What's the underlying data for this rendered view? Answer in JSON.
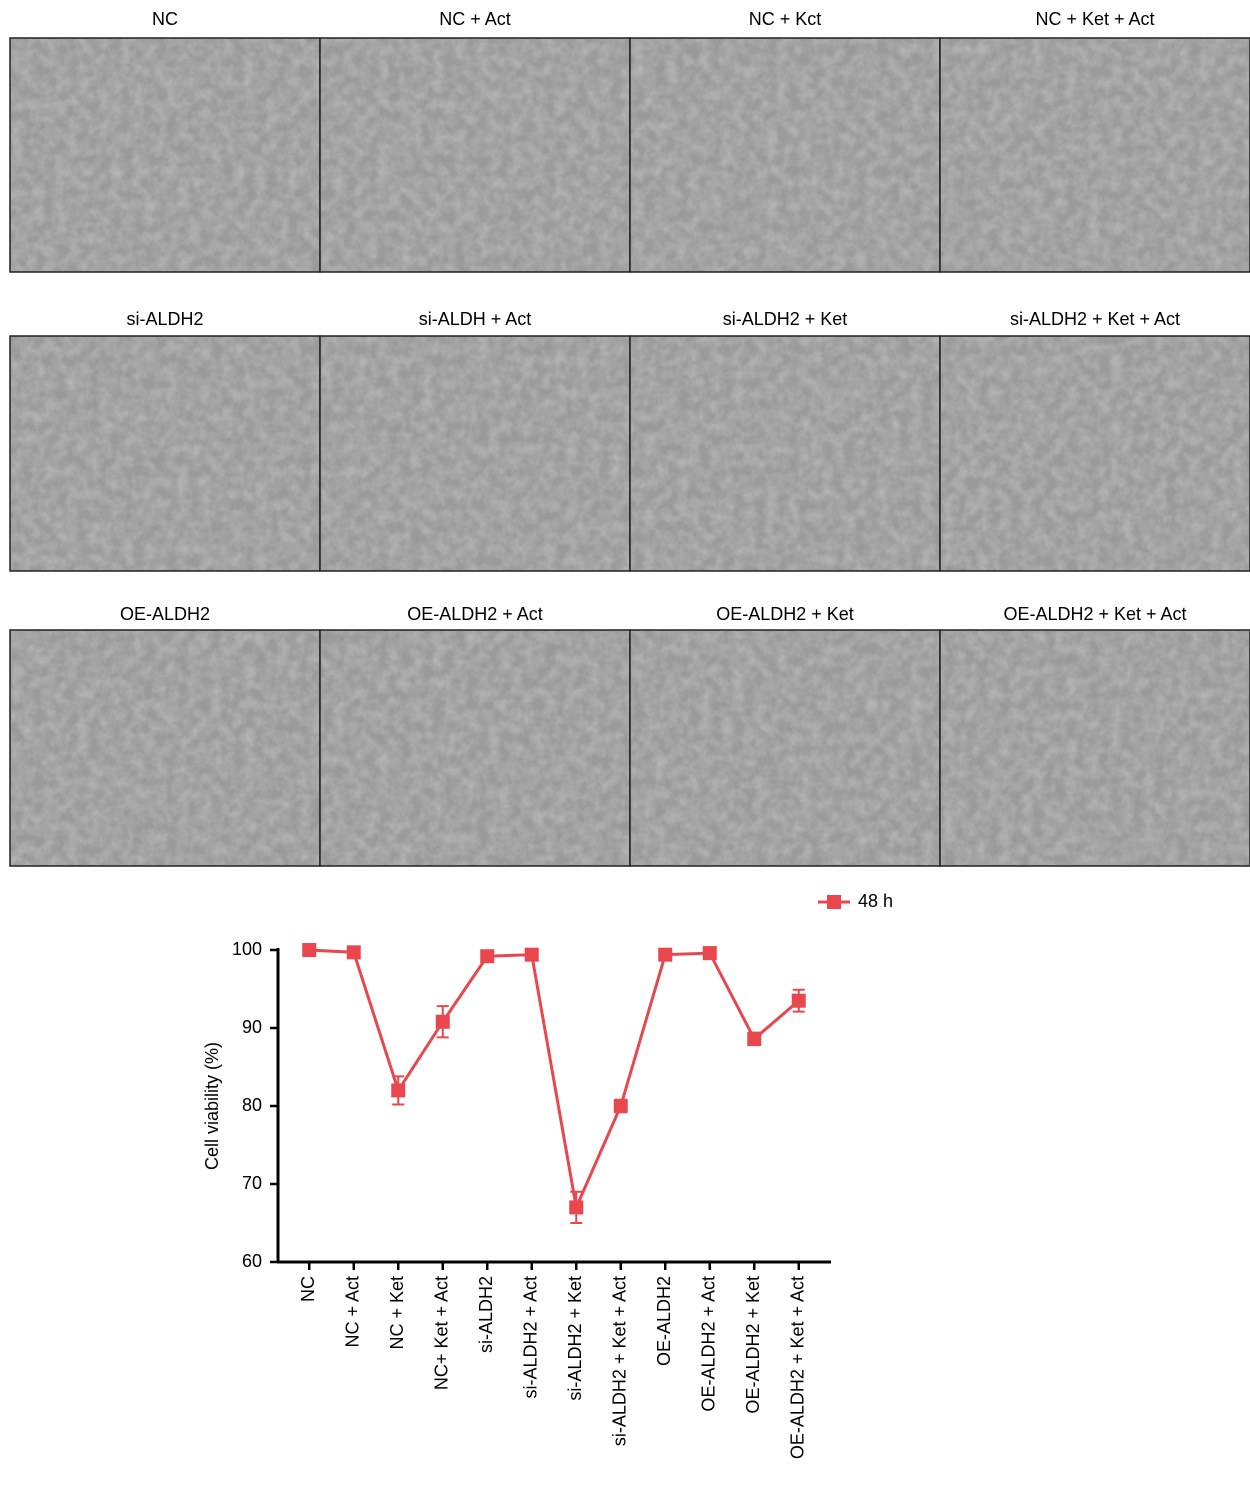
{
  "panels": [
    {
      "label": "NC"
    },
    {
      "label": "NC + Act"
    },
    {
      "label": "NC + Kct"
    },
    {
      "label": "NC + Ket + Act"
    },
    {
      "label": "si-ALDH2"
    },
    {
      "label": "si-ALDH + Act"
    },
    {
      "label": "si-ALDH2 + Ket"
    },
    {
      "label": "si-ALDH2 + Ket + Act"
    },
    {
      "label": "OE-ALDH2"
    },
    {
      "label": "OE-ALDH2 + Act"
    },
    {
      "label": "OE-ALDH2 + Ket"
    },
    {
      "label": "OE-ALDH2 + Ket + Act"
    }
  ],
  "chart_data": {
    "type": "line",
    "y_label": "Cell viability (%)",
    "categories": [
      "NC",
      "NC + Act",
      "NC + Ket",
      "NC+ Ket + Act",
      "si-ALDH2",
      "si-ALDH2 + Act",
      "si-ALDH2 + Ket",
      "si-ALDH2 + Ket + Act",
      "OE-ALDH2",
      "OE-ALDH2 + Act",
      "OE-ALDH2 + Ket",
      "OE-ALDH2 + Ket + Act"
    ],
    "series": [
      {
        "name": "48 h",
        "color": "#e8474e",
        "values": [
          100,
          99.7,
          82,
          90.8,
          99.2,
          99.4,
          67,
          80,
          99.4,
          99.6,
          88.6,
          93.5
        ],
        "errors": [
          0.3,
          0.4,
          1.8,
          2.0,
          0.4,
          0.5,
          2.0,
          0.8,
          0.4,
          0.3,
          0.8,
          1.4
        ]
      }
    ],
    "ylim": [
      60,
      100
    ],
    "yticks": [
      60,
      70,
      80,
      90,
      100
    ],
    "legend": "upper right"
  }
}
